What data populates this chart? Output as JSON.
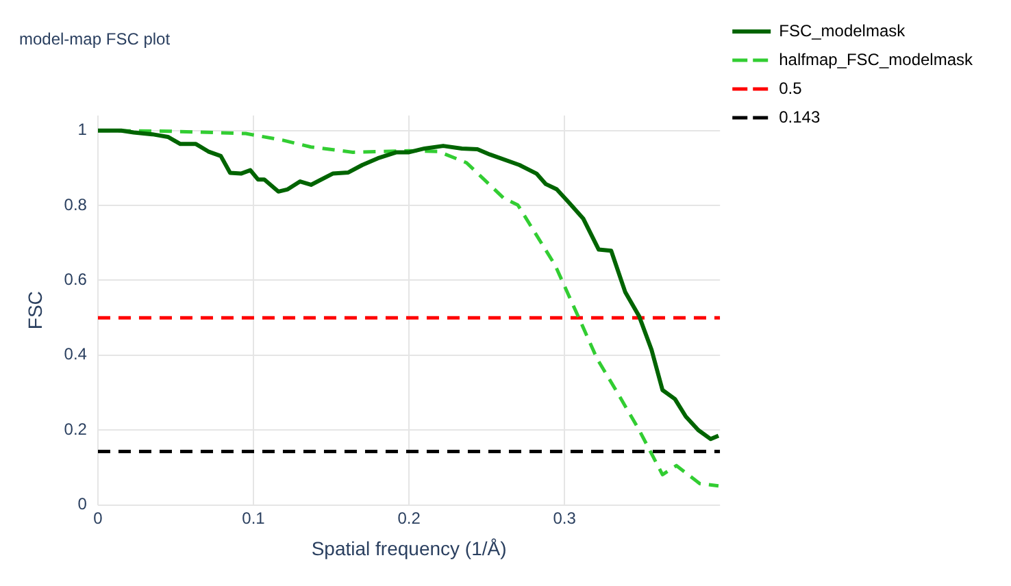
{
  "chart_data": {
    "type": "line",
    "title": "model-map FSC plot",
    "xlabel": "Spatial frequency (1/Å)",
    "ylabel": "FSC",
    "xlim": [
      0,
      0.4
    ],
    "xticks": [
      0,
      0.1,
      0.2,
      0.3
    ],
    "ylim": [
      0,
      1.04
    ],
    "yticks": [
      0,
      0.2,
      0.4,
      0.6,
      0.8,
      1
    ],
    "grid": true,
    "legend": "right",
    "marker": "none",
    "series": [
      {
        "name": "FSC_modelmask",
        "color": "#006400",
        "line_style": "solid",
        "x": [
          0,
          0.015,
          0.023,
          0.035,
          0.045,
          0.053,
          0.063,
          0.071,
          0.079,
          0.085,
          0.092,
          0.098,
          0.103,
          0.107,
          0.116,
          0.122,
          0.13,
          0.137,
          0.151,
          0.161,
          0.17,
          0.18,
          0.192,
          0.2,
          0.21,
          0.222,
          0.234,
          0.244,
          0.252,
          0.271,
          0.282,
          0.288,
          0.295,
          0.303,
          0.312,
          0.322,
          0.33,
          0.339,
          0.348,
          0.356,
          0.363,
          0.371,
          0.378,
          0.386,
          0.394,
          0.399
        ],
        "values": [
          1.0,
          1.0,
          0.995,
          0.99,
          0.983,
          0.964,
          0.964,
          0.944,
          0.932,
          0.887,
          0.885,
          0.894,
          0.869,
          0.869,
          0.837,
          0.843,
          0.864,
          0.855,
          0.885,
          0.888,
          0.908,
          0.926,
          0.942,
          0.942,
          0.952,
          0.959,
          0.952,
          0.95,
          0.936,
          0.908,
          0.885,
          0.857,
          0.843,
          0.807,
          0.765,
          0.682,
          0.679,
          0.569,
          0.504,
          0.414,
          0.307,
          0.283,
          0.236,
          0.2,
          0.176,
          0.185
        ]
      },
      {
        "name": "halfmap_FSC_modelmask",
        "color": "#32cd32",
        "line_style": "dashed",
        "x": [
          0,
          0.047,
          0.095,
          0.119,
          0.137,
          0.164,
          0.2,
          0.219,
          0.237,
          0.261,
          0.27,
          0.294,
          0.303,
          0.312,
          0.321,
          0.333,
          0.348,
          0.363,
          0.372,
          0.387,
          0.399
        ],
        "values": [
          1.0,
          0.998,
          0.992,
          0.974,
          0.956,
          0.942,
          0.946,
          0.944,
          0.914,
          0.819,
          0.801,
          0.64,
          0.557,
          0.474,
          0.39,
          0.307,
          0.2,
          0.081,
          0.105,
          0.057,
          0.051
        ]
      },
      {
        "name": "0.5",
        "color": "#ff0000",
        "line_style": "dashed",
        "x": [
          0,
          0.4
        ],
        "values": [
          0.5,
          0.5
        ]
      },
      {
        "name": "0.143",
        "color": "#000000",
        "line_style": "dashed",
        "x": [
          0,
          0.4
        ],
        "values": [
          0.143,
          0.143
        ]
      }
    ]
  }
}
